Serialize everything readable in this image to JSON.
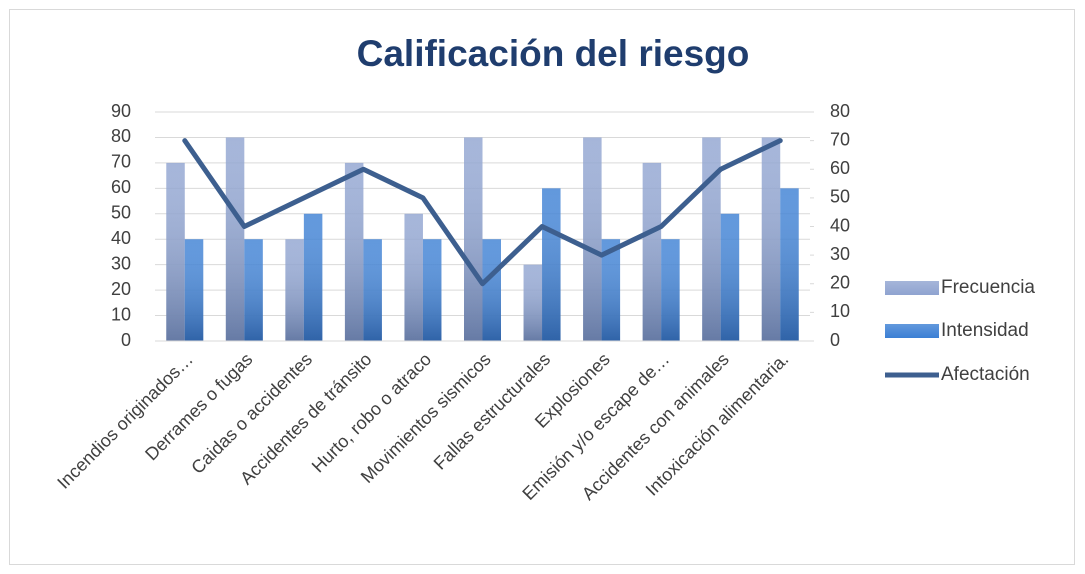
{
  "chart_data": {
    "type": "bar",
    "title": "Calificación del riesgo",
    "categories": [
      "Incendios originados…",
      "Derrames o fugas",
      "Caidas o accidentes",
      "Accidentes de tránsito",
      "Hurto, robo o atraco",
      "Movimientos sismicos",
      "Fallas estructurales",
      "Explosiones",
      "Emisión y/o escape de…",
      "Accidentes con animales",
      "Intoxicación alimentaria."
    ],
    "series": [
      {
        "name": "Frecuencia",
        "type": "bar",
        "color": "#8fa3d0",
        "values": [
          70,
          80,
          40,
          70,
          50,
          80,
          30,
          80,
          70,
          80,
          80
        ]
      },
      {
        "name": "Intensidad",
        "type": "bar",
        "color": "#3b7fd4",
        "values": [
          40,
          40,
          50,
          40,
          40,
          40,
          60,
          40,
          40,
          50,
          60
        ]
      },
      {
        "name": "Afectación",
        "type": "line",
        "axis": "y2",
        "color": "#3d5f8f",
        "values": [
          70,
          40,
          50,
          60,
          50,
          20,
          40,
          30,
          40,
          60,
          70
        ]
      }
    ],
    "ylim": [
      0,
      90
    ],
    "yticks": [
      0,
      10,
      20,
      30,
      40,
      50,
      60,
      70,
      80,
      90
    ],
    "y2lim": [
      0,
      80
    ],
    "y2ticks": [
      0,
      10,
      20,
      30,
      40,
      50,
      60,
      70,
      80
    ],
    "grid": true,
    "legend": "right"
  }
}
